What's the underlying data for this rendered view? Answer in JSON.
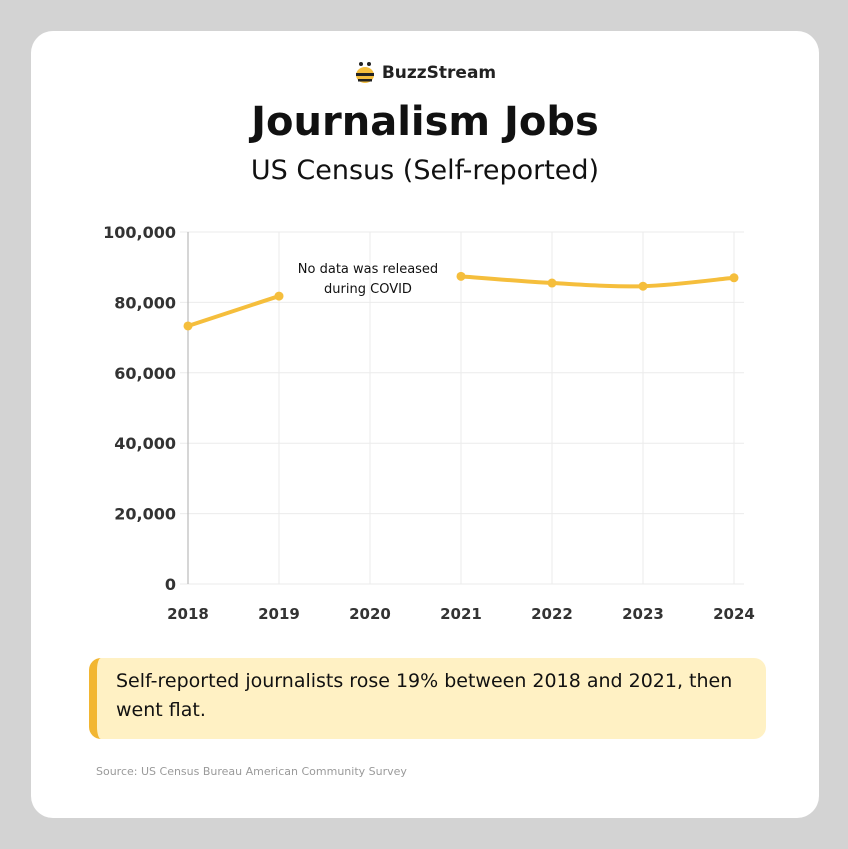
{
  "brand": {
    "name": "BuzzStream",
    "logo_icon": "bee-icon"
  },
  "header": {
    "title": "Journalism Jobs",
    "subtitle": "US Census (Self-reported)"
  },
  "chart_data": {
    "type": "line",
    "title": "Journalism Jobs",
    "subtitle": "US Census (Self-reported)",
    "xlabel": "",
    "ylabel": "",
    "categories": [
      "2018",
      "2019",
      "2020",
      "2021",
      "2022",
      "2023",
      "2024"
    ],
    "series": [
      {
        "values": [
          73300,
          81800,
          null,
          87400,
          85500,
          84600,
          87000
        ]
      }
    ],
    "ylim": [
      0,
      100000
    ],
    "yticks": [
      0,
      20000,
      40000,
      60000,
      80000,
      100000
    ],
    "ytick_labels": [
      "0",
      "20,000",
      "40,000",
      "60,000",
      "80,000",
      "100,000"
    ],
    "grid": true,
    "line_color": "#f5be3c",
    "annotation": [
      "No data was released",
      "during COVID"
    ]
  },
  "callout": {
    "text": "Self-reported journalists rose 19% between 2018 and 2021, then went flat."
  },
  "source": "Source: US Census Bureau American Community Survey"
}
